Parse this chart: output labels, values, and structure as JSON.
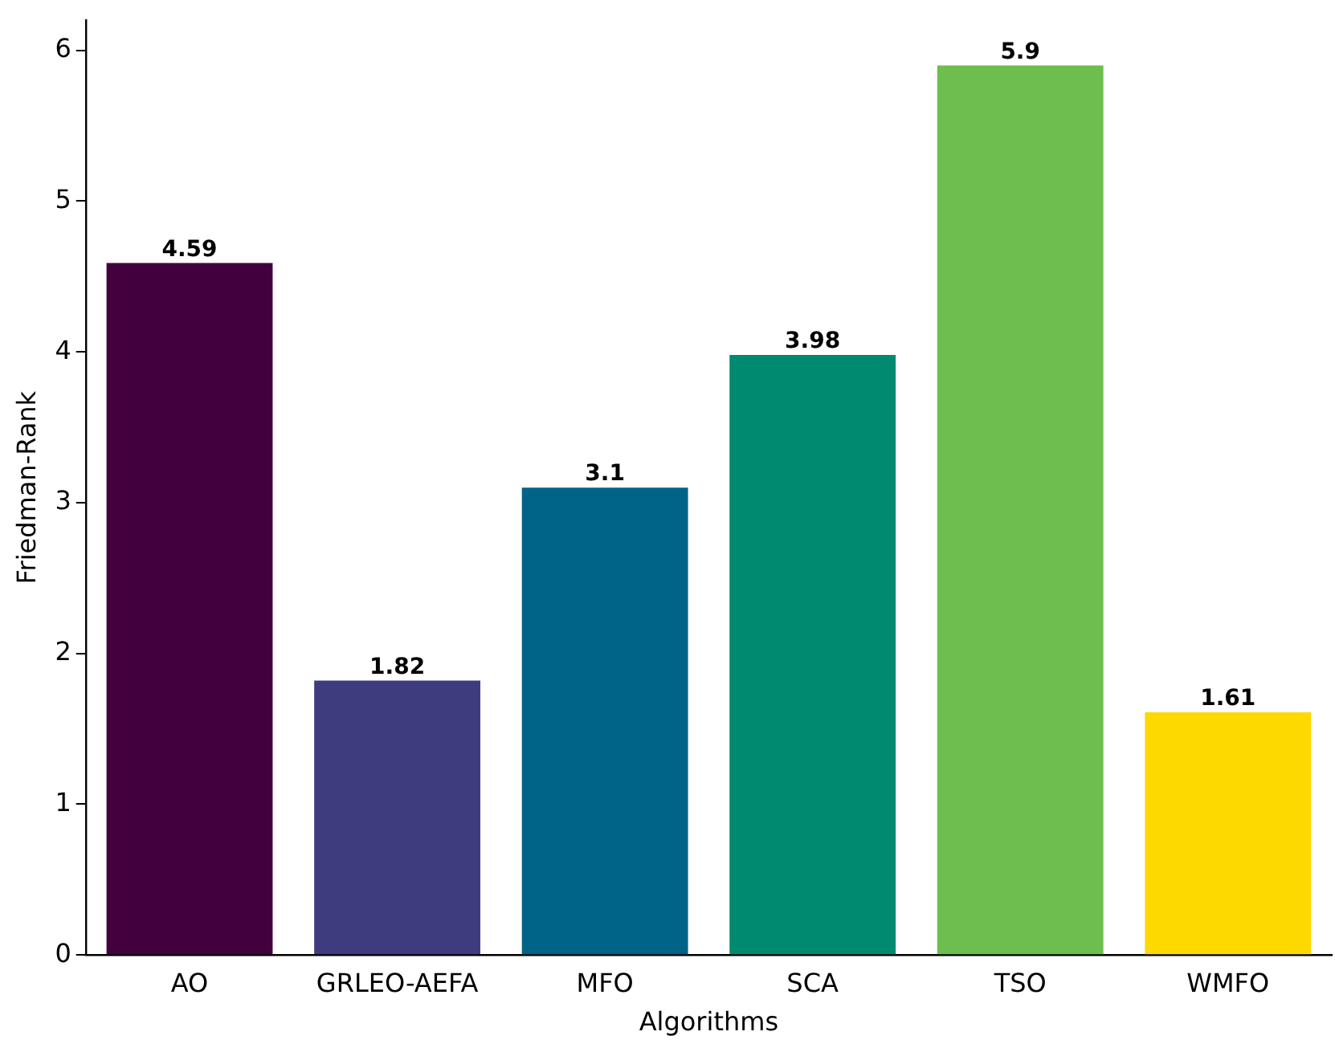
{
  "chart_data": {
    "type": "bar",
    "xlabel": "Algorithms",
    "ylabel": "Friedman-Rank",
    "categories": [
      "AO",
      "GRLEO-AEFA",
      "MFO",
      "SCA",
      "TSO",
      "WMFO"
    ],
    "values": [
      4.59,
      1.82,
      3.1,
      3.98,
      5.9,
      1.61
    ],
    "colors": [
      "#42003f",
      "#3f3b7f",
      "#006388",
      "#008a70",
      "#6dbd4f",
      "#fdd900"
    ],
    "ylim": [
      0,
      6.2
    ],
    "yticks": [
      0,
      1,
      2,
      3,
      4,
      5,
      6
    ],
    "grid": false,
    "legend": false,
    "data_labels": true
  }
}
